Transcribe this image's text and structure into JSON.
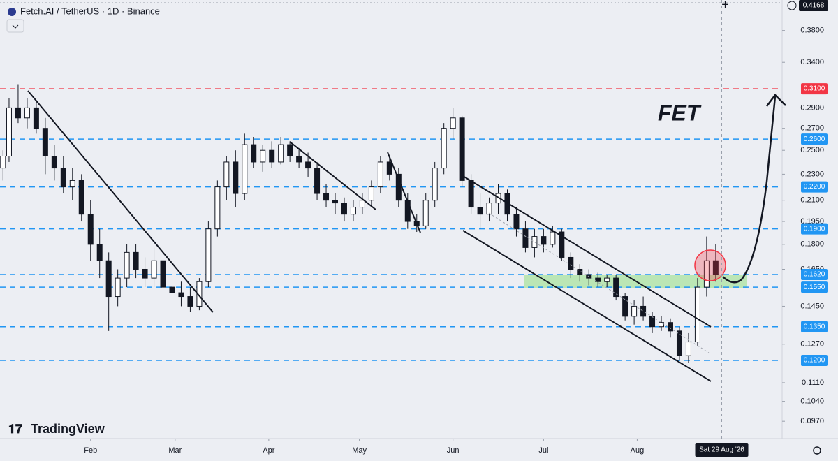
{
  "chart_data": {
    "type": "candlestick",
    "title": "Fetch.AI / TetherUS · 1D · Binance",
    "annotation": "FET",
    "watermark": "TradingView",
    "log_scale": true,
    "grid": false,
    "up_color": "#ffffff",
    "down_color": "#131722",
    "wick_color": "#131722",
    "xlim": [
      1,
      260
    ],
    "xticks": [
      {
        "value": 31,
        "label": "Feb"
      },
      {
        "value": 59,
        "label": "Mar"
      },
      {
        "value": 90,
        "label": "Apr"
      },
      {
        "value": 120,
        "label": "May"
      },
      {
        "value": 151,
        "label": "Jun"
      },
      {
        "value": 181,
        "label": "Jul"
      },
      {
        "value": 212,
        "label": "Aug"
      }
    ],
    "ylim": [
      0.0913,
      0.4227
    ],
    "yticks": [
      {
        "value": 0.38,
        "label": "0.3800"
      },
      {
        "value": 0.34,
        "label": "0.3400"
      },
      {
        "value": 0.29,
        "label": "0.2900"
      },
      {
        "value": 0.27,
        "label": "0.2700"
      },
      {
        "value": 0.25,
        "label": "0.2500"
      },
      {
        "value": 0.23,
        "label": "0.2300"
      },
      {
        "value": 0.21,
        "label": "0.2100"
      },
      {
        "value": 0.195,
        "label": "0.1950"
      },
      {
        "value": 0.18,
        "label": "0.1800"
      },
      {
        "value": 0.165,
        "label": "0.1650"
      },
      {
        "value": 0.145,
        "label": "0.1450"
      },
      {
        "value": 0.127,
        "label": "0.1270"
      },
      {
        "value": 0.111,
        "label": "0.1110"
      },
      {
        "value": 0.104,
        "label": "0.1040"
      },
      {
        "value": 0.097,
        "label": "0.0970"
      }
    ],
    "levels": [
      {
        "value": 0.31,
        "label": "0.3100",
        "color": "#f23645"
      },
      {
        "value": 0.26,
        "label": "0.2600",
        "color": "#2196f3"
      },
      {
        "value": 0.22,
        "label": "0.2200",
        "color": "#2196f3"
      },
      {
        "value": 0.19,
        "label": "0.1900",
        "color": "#2196f3"
      },
      {
        "value": 0.162,
        "label": "0.1620",
        "color": "#2196f3"
      },
      {
        "value": 0.155,
        "label": "0.1550",
        "color": "#2196f3"
      },
      {
        "value": 0.135,
        "label": "0.1350",
        "color": "#2196f3"
      },
      {
        "value": 0.12,
        "label": "0.1200",
        "color": "#2196f3"
      }
    ],
    "crosshair": {
      "x": {
        "value": 240,
        "label": "Sat 29 Aug '26"
      },
      "y": {
        "value": 0.4168,
        "label": "0.4168"
      }
    },
    "candles": [
      [
        2,
        0.235,
        0.25,
        0.225,
        0.245
      ],
      [
        4,
        0.245,
        0.3,
        0.24,
        0.29
      ],
      [
        7,
        0.29,
        0.315,
        0.275,
        0.28
      ],
      [
        10,
        0.28,
        0.3,
        0.27,
        0.29
      ],
      [
        13,
        0.29,
        0.298,
        0.265,
        0.27
      ],
      [
        16,
        0.27,
        0.28,
        0.23,
        0.245
      ],
      [
        19,
        0.245,
        0.255,
        0.225,
        0.235
      ],
      [
        22,
        0.235,
        0.245,
        0.215,
        0.22
      ],
      [
        25,
        0.22,
        0.235,
        0.21,
        0.225
      ],
      [
        28,
        0.225,
        0.23,
        0.195,
        0.2
      ],
      [
        31,
        0.2,
        0.21,
        0.17,
        0.18
      ],
      [
        34,
        0.18,
        0.19,
        0.16,
        0.17
      ],
      [
        37,
        0.17,
        0.175,
        0.133,
        0.15
      ],
      [
        40,
        0.15,
        0.165,
        0.145,
        0.16
      ],
      [
        43,
        0.16,
        0.18,
        0.155,
        0.175
      ],
      [
        46,
        0.175,
        0.18,
        0.16,
        0.165
      ],
      [
        49,
        0.165,
        0.172,
        0.155,
        0.16
      ],
      [
        52,
        0.16,
        0.178,
        0.155,
        0.17
      ],
      [
        55,
        0.17,
        0.172,
        0.152,
        0.155
      ],
      [
        58,
        0.155,
        0.162,
        0.148,
        0.152
      ],
      [
        61,
        0.152,
        0.158,
        0.145,
        0.15
      ],
      [
        64,
        0.15,
        0.155,
        0.142,
        0.145
      ],
      [
        67,
        0.145,
        0.16,
        0.143,
        0.158
      ],
      [
        70,
        0.158,
        0.195,
        0.155,
        0.19
      ],
      [
        73,
        0.19,
        0.225,
        0.185,
        0.22
      ],
      [
        76,
        0.22,
        0.245,
        0.21,
        0.24
      ],
      [
        79,
        0.24,
        0.25,
        0.205,
        0.215
      ],
      [
        82,
        0.215,
        0.265,
        0.21,
        0.255
      ],
      [
        85,
        0.255,
        0.262,
        0.235,
        0.24
      ],
      [
        88,
        0.24,
        0.255,
        0.232,
        0.25
      ],
      [
        91,
        0.25,
        0.258,
        0.235,
        0.24
      ],
      [
        94,
        0.24,
        0.262,
        0.238,
        0.255
      ],
      [
        97,
        0.255,
        0.258,
        0.24,
        0.245
      ],
      [
        100,
        0.245,
        0.252,
        0.235,
        0.24
      ],
      [
        103,
        0.24,
        0.248,
        0.228,
        0.235
      ],
      [
        106,
        0.235,
        0.24,
        0.21,
        0.215
      ],
      [
        109,
        0.215,
        0.222,
        0.205,
        0.21
      ],
      [
        112,
        0.21,
        0.215,
        0.2,
        0.208
      ],
      [
        115,
        0.208,
        0.212,
        0.195,
        0.2
      ],
      [
        118,
        0.2,
        0.21,
        0.195,
        0.205
      ],
      [
        121,
        0.205,
        0.215,
        0.2,
        0.21
      ],
      [
        124,
        0.21,
        0.225,
        0.205,
        0.22
      ],
      [
        127,
        0.22,
        0.245,
        0.215,
        0.24
      ],
      [
        130,
        0.24,
        0.245,
        0.225,
        0.23
      ],
      [
        133,
        0.23,
        0.235,
        0.205,
        0.21
      ],
      [
        136,
        0.21,
        0.215,
        0.19,
        0.195
      ],
      [
        139,
        0.195,
        0.2,
        0.188,
        0.192
      ],
      [
        142,
        0.192,
        0.215,
        0.19,
        0.21
      ],
      [
        145,
        0.21,
        0.24,
        0.205,
        0.235
      ],
      [
        148,
        0.235,
        0.275,
        0.23,
        0.27
      ],
      [
        151,
        0.27,
        0.29,
        0.26,
        0.28
      ],
      [
        154,
        0.28,
        0.282,
        0.22,
        0.225
      ],
      [
        157,
        0.225,
        0.23,
        0.2,
        0.205
      ],
      [
        160,
        0.205,
        0.215,
        0.19,
        0.2
      ],
      [
        163,
        0.2,
        0.212,
        0.195,
        0.208
      ],
      [
        166,
        0.208,
        0.222,
        0.2,
        0.215
      ],
      [
        169,
        0.215,
        0.218,
        0.195,
        0.2
      ],
      [
        172,
        0.2,
        0.205,
        0.185,
        0.19
      ],
      [
        175,
        0.19,
        0.195,
        0.175,
        0.178
      ],
      [
        178,
        0.178,
        0.19,
        0.172,
        0.185
      ],
      [
        181,
        0.185,
        0.19,
        0.175,
        0.18
      ],
      [
        184,
        0.18,
        0.192,
        0.178,
        0.188
      ],
      [
        187,
        0.188,
        0.19,
        0.17,
        0.172
      ],
      [
        190,
        0.172,
        0.175,
        0.16,
        0.165
      ],
      [
        193,
        0.165,
        0.168,
        0.158,
        0.162
      ],
      [
        196,
        0.162,
        0.165,
        0.156,
        0.16
      ],
      [
        199,
        0.16,
        0.163,
        0.155,
        0.158
      ],
      [
        202,
        0.158,
        0.162,
        0.155,
        0.16
      ],
      [
        205,
        0.16,
        0.162,
        0.148,
        0.15
      ],
      [
        208,
        0.15,
        0.152,
        0.138,
        0.14
      ],
      [
        211,
        0.14,
        0.148,
        0.136,
        0.145
      ],
      [
        214,
        0.145,
        0.15,
        0.138,
        0.14
      ],
      [
        217,
        0.14,
        0.142,
        0.132,
        0.135
      ],
      [
        220,
        0.135,
        0.14,
        0.133,
        0.137
      ],
      [
        223,
        0.137,
        0.139,
        0.13,
        0.133
      ],
      [
        226,
        0.133,
        0.135,
        0.12,
        0.122
      ],
      [
        229,
        0.122,
        0.132,
        0.119,
        0.128
      ],
      [
        232,
        0.128,
        0.16,
        0.126,
        0.155
      ],
      [
        235,
        0.155,
        0.185,
        0.15,
        0.17
      ],
      [
        238,
        0.17,
        0.18,
        0.158,
        0.162
      ]
    ]
  }
}
